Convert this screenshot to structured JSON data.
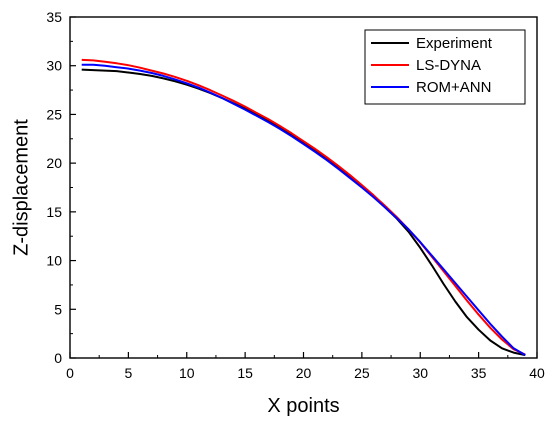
{
  "chart_data": {
    "type": "line",
    "xlabel": "X points",
    "ylabel": "Z-displacement",
    "xlim": [
      0,
      40
    ],
    "ylim": [
      0,
      35
    ],
    "xticks": [
      "0",
      "5",
      "10",
      "15",
      "20",
      "25",
      "30",
      "35",
      "40"
    ],
    "yticks": [
      "0",
      "5",
      "10",
      "15",
      "20",
      "25",
      "30",
      "35"
    ],
    "grid": false,
    "legend": "top-right",
    "series": [
      {
        "name": "Experiment",
        "color": "#000000",
        "x": [
          1,
          2,
          3,
          4,
          5,
          6,
          7,
          8,
          9,
          10,
          11,
          12,
          13,
          14,
          15,
          16,
          17,
          18,
          19,
          20,
          21,
          22,
          23,
          24,
          25,
          26,
          27,
          28,
          29,
          30,
          31,
          32,
          33,
          34,
          35,
          36,
          37,
          38,
          39
        ],
        "y": [
          29.6,
          29.55,
          29.5,
          29.45,
          29.3,
          29.15,
          28.95,
          28.7,
          28.4,
          28.05,
          27.65,
          27.2,
          26.7,
          26.15,
          25.6,
          24.95,
          24.3,
          23.6,
          22.85,
          22.1,
          21.3,
          20.45,
          19.55,
          18.6,
          17.6,
          16.55,
          15.45,
          14.3,
          12.95,
          11.3,
          9.5,
          7.6,
          5.8,
          4.2,
          2.9,
          1.8,
          1.0,
          0.55,
          0.3
        ]
      },
      {
        "name": "LS-DYNA",
        "color": "#ff0000",
        "x": [
          1,
          2,
          3,
          4,
          5,
          6,
          7,
          8,
          9,
          10,
          11,
          12,
          13,
          14,
          15,
          16,
          17,
          18,
          19,
          20,
          21,
          22,
          23,
          24,
          25,
          26,
          27,
          28,
          29,
          30,
          31,
          32,
          33,
          34,
          35,
          36,
          37,
          38,
          39
        ],
        "y": [
          30.6,
          30.55,
          30.4,
          30.25,
          30.05,
          29.8,
          29.5,
          29.2,
          28.85,
          28.45,
          28.0,
          27.5,
          26.95,
          26.4,
          25.8,
          25.15,
          24.5,
          23.8,
          23.05,
          22.25,
          21.45,
          20.6,
          19.7,
          18.75,
          17.75,
          16.7,
          15.6,
          14.45,
          13.2,
          11.85,
          10.4,
          8.9,
          7.4,
          5.9,
          4.45,
          3.1,
          1.9,
          0.9,
          0.35
        ]
      },
      {
        "name": "ROM+ANN",
        "color": "#0000ff",
        "x": [
          1,
          2,
          3,
          4,
          5,
          6,
          7,
          8,
          9,
          10,
          11,
          12,
          13,
          14,
          15,
          16,
          17,
          18,
          19,
          20,
          21,
          22,
          23,
          24,
          25,
          26,
          27,
          28,
          29,
          30,
          31,
          32,
          33,
          34,
          35,
          36,
          37,
          38,
          39
        ],
        "y": [
          30.1,
          30.1,
          30.0,
          29.85,
          29.7,
          29.5,
          29.25,
          28.95,
          28.6,
          28.2,
          27.75,
          27.25,
          26.7,
          26.1,
          25.5,
          24.85,
          24.2,
          23.5,
          22.75,
          21.95,
          21.15,
          20.3,
          19.4,
          18.45,
          17.5,
          16.5,
          15.45,
          14.35,
          13.2,
          11.9,
          10.5,
          9.1,
          7.7,
          6.3,
          4.9,
          3.5,
          2.2,
          1.0,
          0.3
        ]
      }
    ]
  }
}
